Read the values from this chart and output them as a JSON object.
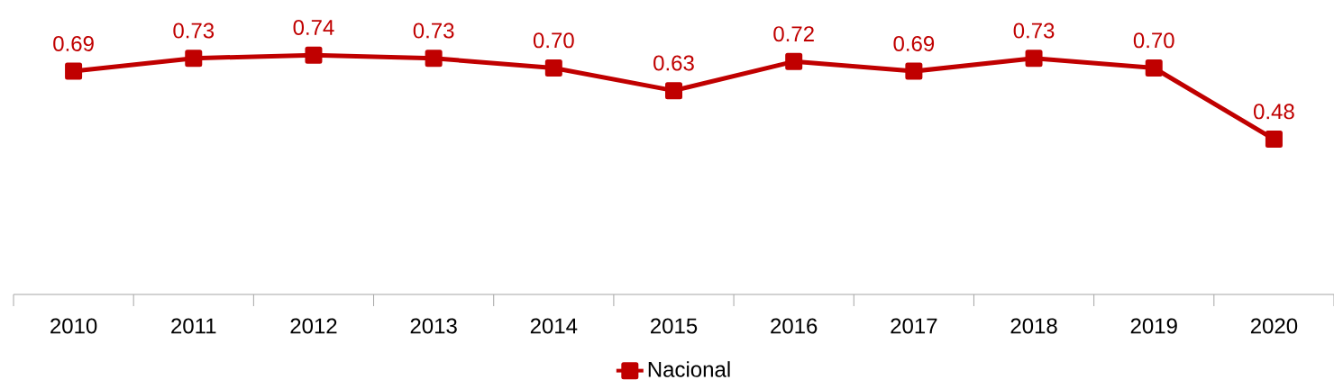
{
  "chart_data": {
    "type": "line",
    "categories": [
      "2010",
      "2011",
      "2012",
      "2013",
      "2014",
      "2015",
      "2016",
      "2017",
      "2018",
      "2019",
      "2020"
    ],
    "series": [
      {
        "name": "Nacional",
        "color": "#c00000",
        "values": [
          0.69,
          0.73,
          0.74,
          0.73,
          0.7,
          0.63,
          0.72,
          0.69,
          0.73,
          0.7,
          0.48
        ],
        "value_labels": [
          "0.69",
          "0.73",
          "0.74",
          "0.73",
          "0.70",
          "0.63",
          "0.72",
          "0.69",
          "0.73",
          "0.70",
          "0.48"
        ]
      }
    ],
    "marker": "square",
    "line_style": "solid",
    "legend": "bottom"
  }
}
